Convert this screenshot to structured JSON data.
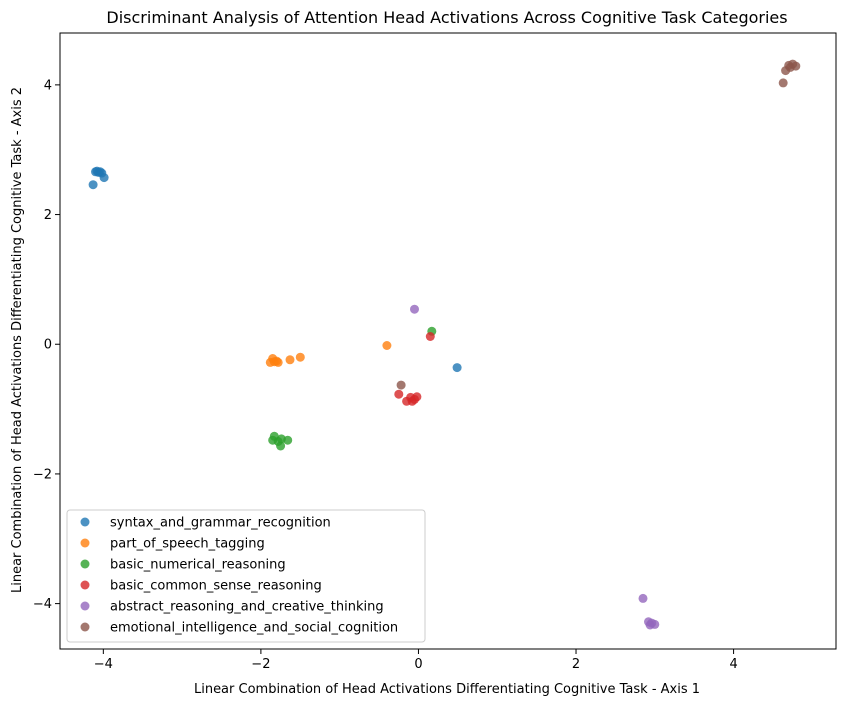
{
  "chart_data": {
    "type": "scatter",
    "title": "Discriminant Analysis of Attention Head Activations Across Cognitive Task Categories",
    "xlabel": "Linear Combination of Head Activations Differentiating Cognitive Task - Axis 1",
    "ylabel": "Linear Combination of Head Activations Differentiating Cognitive Task - Axis 2",
    "xlim": [
      -4.55,
      5.3
    ],
    "ylim": [
      -4.7,
      4.8
    ],
    "xticks": [
      -4,
      -2,
      0,
      2,
      4
    ],
    "yticks": [
      -4,
      -2,
      0,
      2,
      4
    ],
    "grid": false,
    "legend_position": "lower-left",
    "series": [
      {
        "name": "syntax_and_grammar_recognition",
        "color": "#1f77b4",
        "points": [
          [
            -4.13,
            2.46
          ],
          [
            -4.1,
            2.66
          ],
          [
            -4.08,
            2.67
          ],
          [
            -4.06,
            2.65
          ],
          [
            -4.04,
            2.66
          ],
          [
            -4.02,
            2.64
          ],
          [
            -3.99,
            2.57
          ],
          [
            0.49,
            -0.36
          ]
        ]
      },
      {
        "name": "part_of_speech_tagging",
        "color": "#ff7f0e",
        "points": [
          [
            -1.88,
            -0.28
          ],
          [
            -1.85,
            -0.22
          ],
          [
            -1.83,
            -0.27
          ],
          [
            -1.8,
            -0.26
          ],
          [
            -1.78,
            -0.28
          ],
          [
            -1.63,
            -0.24
          ],
          [
            -1.5,
            -0.2
          ],
          [
            -0.4,
            -0.02
          ]
        ]
      },
      {
        "name": "basic_numerical_reasoning",
        "color": "#2ca02c",
        "points": [
          [
            -1.85,
            -1.48
          ],
          [
            -1.83,
            -1.42
          ],
          [
            -1.78,
            -1.5
          ],
          [
            -1.75,
            -1.57
          ],
          [
            -1.74,
            -1.46
          ],
          [
            -1.66,
            -1.48
          ],
          [
            0.17,
            0.2
          ]
        ]
      },
      {
        "name": "basic_common_sense_reasoning",
        "color": "#d62728",
        "points": [
          [
            -0.25,
            -0.77
          ],
          [
            -0.15,
            -0.88
          ],
          [
            -0.1,
            -0.82
          ],
          [
            -0.08,
            -0.88
          ],
          [
            -0.05,
            -0.85
          ],
          [
            -0.02,
            -0.81
          ],
          [
            0.15,
            0.12
          ]
        ]
      },
      {
        "name": "abstract_reasoning_and_creative_thinking",
        "color": "#9467bd",
        "points": [
          [
            -0.05,
            0.54
          ],
          [
            2.85,
            -3.92
          ],
          [
            2.92,
            -4.28
          ],
          [
            2.94,
            -4.33
          ],
          [
            2.96,
            -4.3
          ],
          [
            3.0,
            -4.32
          ]
        ]
      },
      {
        "name": "emotional_intelligence_and_social_cognition",
        "color": "#8c564b",
        "points": [
          [
            -0.22,
            -0.63
          ],
          [
            4.63,
            4.03
          ],
          [
            4.66,
            4.22
          ],
          [
            4.7,
            4.3
          ],
          [
            4.72,
            4.27
          ],
          [
            4.75,
            4.32
          ],
          [
            4.79,
            4.29
          ]
        ]
      }
    ]
  }
}
